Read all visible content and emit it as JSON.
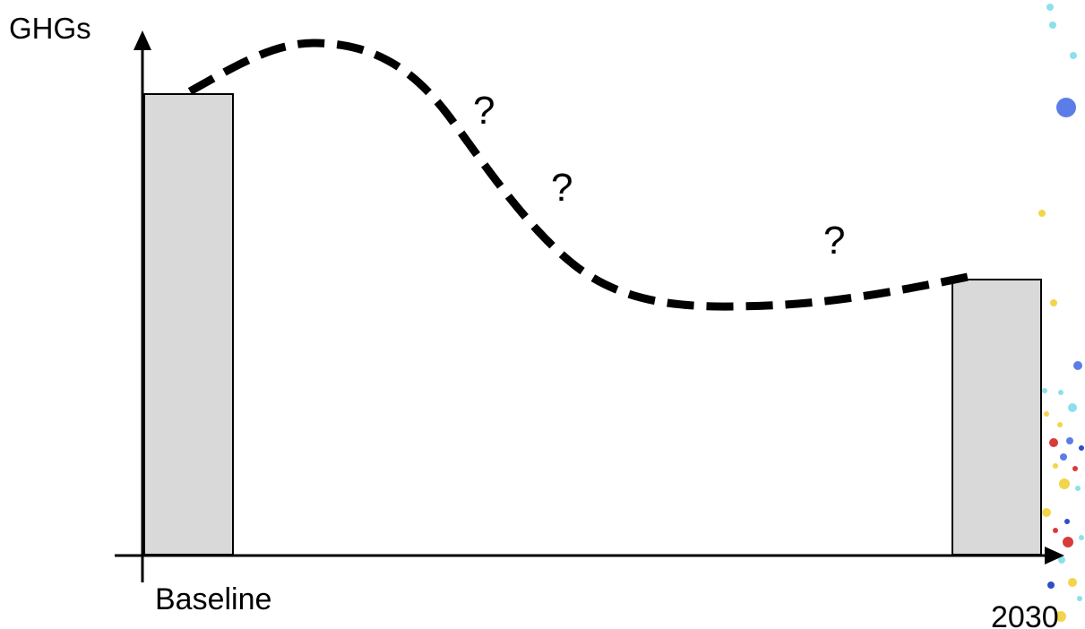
{
  "y_axis_label": "GHGs",
  "x_axis_start_label": "Baseline",
  "x_axis_end_label": "2030",
  "uncertainty_marks": [
    "?",
    "?",
    "?"
  ],
  "colors": {
    "bar_fill": "#d9d9d9",
    "outline": "#000000",
    "dots": [
      "#8de0ea",
      "#5b7de8",
      "#f2d54a",
      "#d93a3a",
      "#2b4fc8"
    ]
  }
}
